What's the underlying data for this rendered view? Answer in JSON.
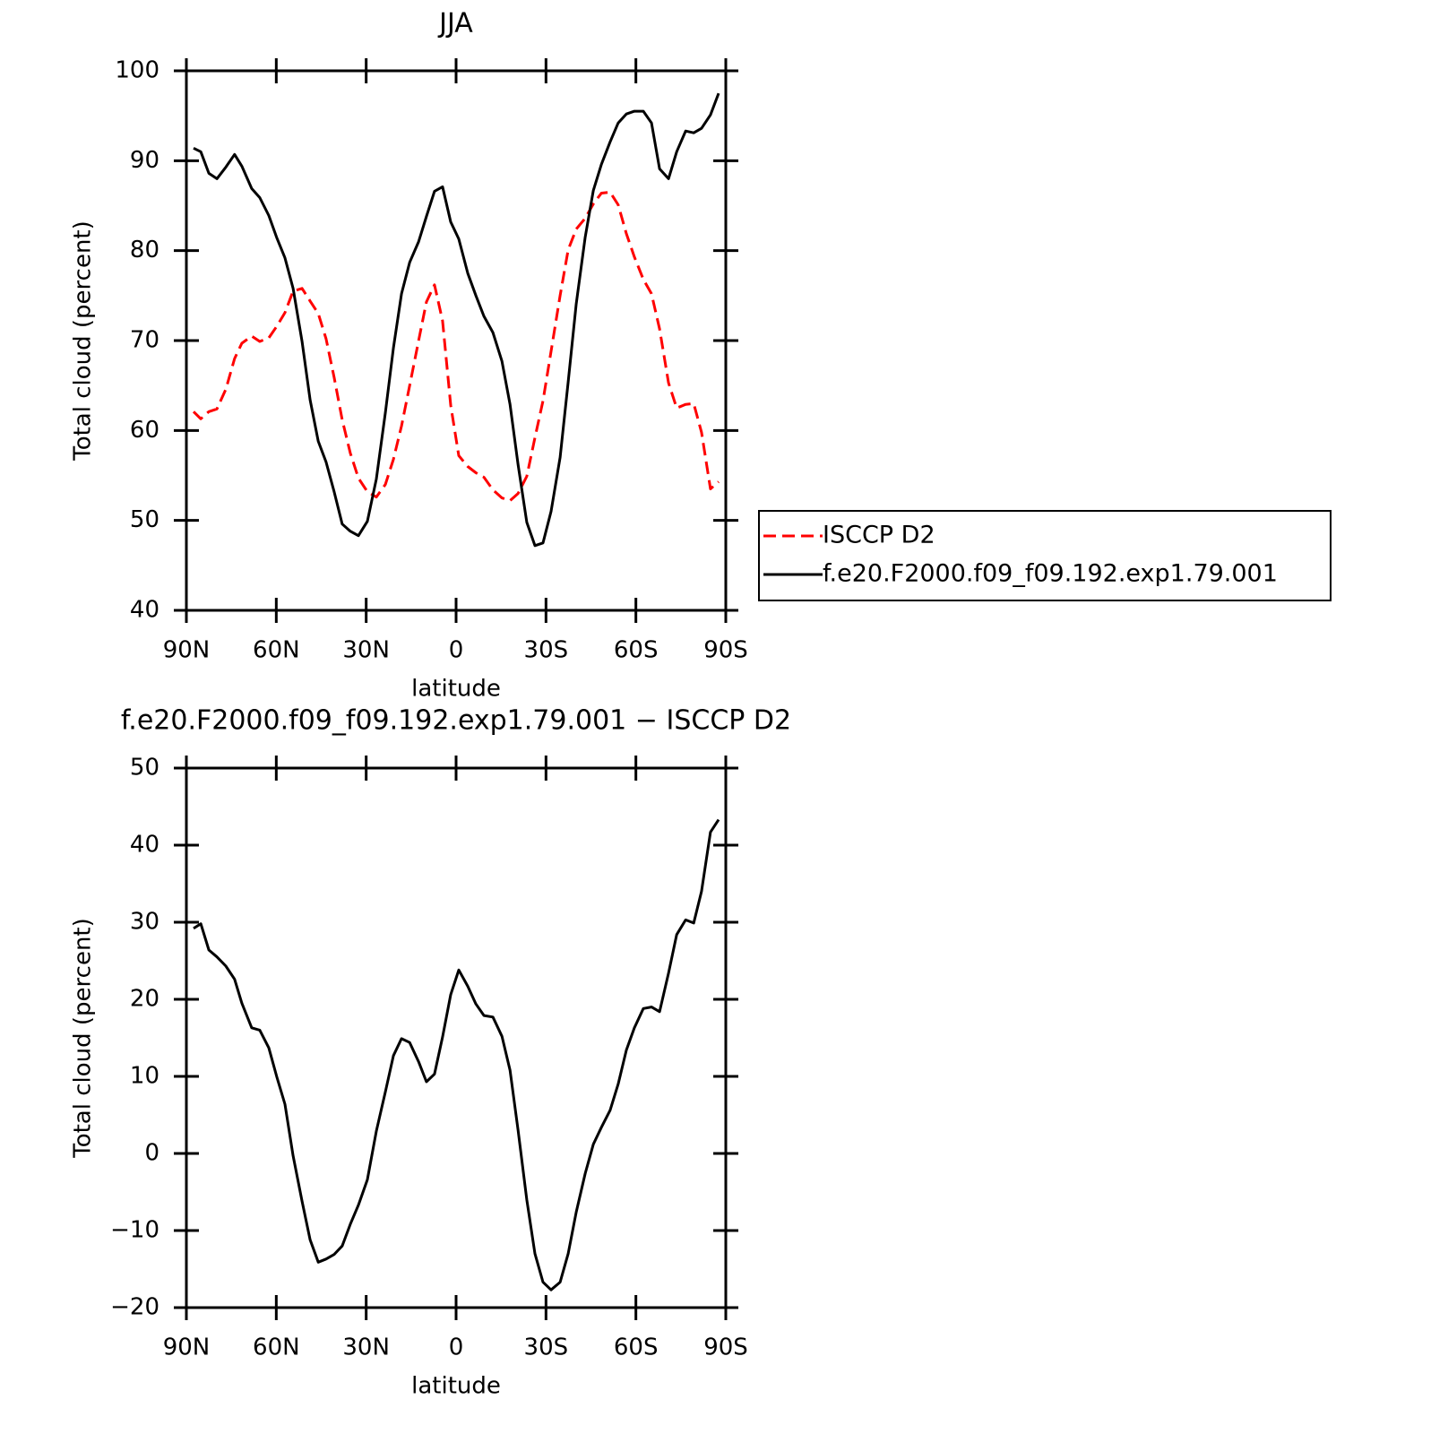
{
  "chart_data": [
    {
      "type": "line",
      "title": "JJA",
      "xlabel": "latitude",
      "ylabel": "Total cloud (percent)",
      "x": [
        87.6,
        85.2,
        82.5,
        79.8,
        76.8,
        73.9,
        71.5,
        68.2,
        65.5,
        62.5,
        59.8,
        57.1,
        54.4,
        51.4,
        48.7,
        46.0,
        43.4,
        40.7,
        38.0,
        35.3,
        32.6,
        29.6,
        26.6,
        23.6,
        20.9,
        18.2,
        15.5,
        12.5,
        9.9,
        7.2,
        4.5,
        1.8,
        -0.9,
        -3.9,
        -6.6,
        -9.3,
        -12.3,
        -15.3,
        -18.0,
        -20.7,
        -23.6,
        -26.3,
        -29.0,
        -31.7,
        -34.7,
        -37.4,
        -40.1,
        -43.1,
        -45.8,
        -48.5,
        -51.4,
        -54.1,
        -56.8,
        -59.5,
        -62.5,
        -65.2,
        -67.9,
        -70.9,
        -73.6,
        -76.6,
        -79.3,
        -81.9,
        -84.9,
        -87.6
      ],
      "series": [
        {
          "name": "ISCCP D2",
          "color": "#ff0000",
          "dash": true,
          "values": [
            62.1,
            61.3,
            62.1,
            62.4,
            64.6,
            68.0,
            69.7,
            70.5,
            69.9,
            70.3,
            71.6,
            73.1,
            75.5,
            75.8,
            74.4,
            73.0,
            70.2,
            65.9,
            61.2,
            57.5,
            54.7,
            53.2,
            52.6,
            54.0,
            56.8,
            60.5,
            65.0,
            70.0,
            74.3,
            76.2,
            72.2,
            62.8,
            57.2,
            56.0,
            55.3,
            54.8,
            53.4,
            52.5,
            52.2,
            53.0,
            54.9,
            59.2,
            63.3,
            68.8,
            75.0,
            80.1,
            82.4,
            83.6,
            85.2,
            86.4,
            86.5,
            85.1,
            81.9,
            79.3,
            76.8,
            75.2,
            71.3,
            65.3,
            62.5,
            62.9,
            63.0,
            59.8,
            53.5,
            54.3
          ]
        },
        {
          "name": "f.e20.F2000.f09_f09.192.exp1.79.001",
          "color": "#000000",
          "dash": false,
          "values": [
            91.4,
            91.0,
            88.6,
            88.0,
            89.3,
            90.7,
            89.4,
            86.9,
            85.9,
            83.9,
            81.4,
            79.2,
            75.8,
            69.9,
            63.4,
            58.8,
            56.5,
            53.2,
            49.6,
            48.8,
            48.3,
            49.9,
            54.6,
            62.0,
            69.2,
            75.2,
            78.7,
            81.0,
            83.8,
            86.6,
            87.1,
            83.2,
            81.3,
            77.5,
            75.0,
            72.7,
            70.9,
            67.7,
            62.9,
            56.2,
            49.8,
            47.2,
            47.5,
            51.0,
            57.0,
            65.4,
            74.1,
            81.5,
            86.7,
            89.6,
            92.1,
            94.2,
            95.2,
            95.5,
            95.5,
            94.2,
            89.1,
            88.0,
            91.0,
            93.3,
            93.1,
            93.6,
            95.1,
            97.5
          ]
        }
      ],
      "xlim": [
        90,
        -90
      ],
      "xticks": [
        {
          "value": 90,
          "label": "90N"
        },
        {
          "value": 60,
          "label": "60N"
        },
        {
          "value": 30,
          "label": "30N"
        },
        0,
        {
          "value": -30,
          "label": "30S"
        },
        {
          "value": -60,
          "label": "60S"
        },
        {
          "value": -90,
          "label": "90S"
        }
      ],
      "ylim": [
        40,
        100
      ],
      "yticks": [
        40,
        50,
        60,
        70,
        80,
        90,
        100
      ],
      "legend": "right"
    },
    {
      "type": "line",
      "title": "f.e20.F2000.f09_f09.192.exp1.79.001 − ISCCP D2",
      "xlabel": "latitude",
      "ylabel": "Total cloud (percent)",
      "x": [
        87.6,
        85.2,
        82.5,
        79.8,
        76.8,
        73.9,
        71.5,
        68.2,
        65.5,
        62.5,
        59.8,
        57.1,
        54.4,
        51.4,
        48.7,
        46.0,
        43.4,
        40.7,
        38.0,
        35.3,
        32.6,
        29.6,
        26.6,
        23.6,
        20.9,
        18.2,
        15.5,
        12.5,
        9.9,
        7.2,
        4.5,
        1.8,
        -0.9,
        -3.9,
        -6.6,
        -9.3,
        -12.3,
        -15.3,
        -18.0,
        -20.7,
        -23.6,
        -26.3,
        -29.0,
        -31.7,
        -34.7,
        -37.4,
        -40.1,
        -43.1,
        -45.8,
        -48.5,
        -51.4,
        -54.1,
        -56.8,
        -59.5,
        -62.5,
        -65.2,
        -67.9,
        -70.9,
        -73.6,
        -76.6,
        -79.3,
        -81.9,
        -84.9,
        -87.6
      ],
      "series": [
        {
          "color": "#000000",
          "dash": false,
          "values": [
            29.2,
            29.8,
            26.4,
            25.5,
            24.3,
            22.6,
            19.5,
            16.3,
            16.0,
            13.7,
            9.9,
            6.4,
            -0.3,
            -6.2,
            -11.2,
            -14.1,
            -13.7,
            -13.1,
            -12.0,
            -9.2,
            -6.7,
            -3.4,
            2.9,
            8.0,
            12.7,
            14.9,
            14.4,
            11.9,
            9.3,
            10.3,
            15.1,
            20.6,
            23.8,
            21.7,
            19.4,
            17.9,
            17.7,
            15.2,
            10.8,
            3.0,
            -6.0,
            -13.0,
            -16.7,
            -17.7,
            -16.7,
            -13.0,
            -7.6,
            -2.6,
            1.2,
            3.4,
            5.6,
            9.0,
            13.4,
            16.3,
            18.8,
            19.0,
            18.4,
            23.4,
            28.4,
            30.3,
            29.9,
            34.0,
            41.7,
            43.3
          ]
        }
      ],
      "xlim": [
        90,
        -90
      ],
      "xticks": [
        {
          "value": 90,
          "label": "90N"
        },
        {
          "value": 60,
          "label": "60N"
        },
        {
          "value": 30,
          "label": "30N"
        },
        0,
        {
          "value": -30,
          "label": "30S"
        },
        {
          "value": -60,
          "label": "60S"
        },
        {
          "value": -90,
          "label": "90S"
        }
      ],
      "ylim": [
        -20,
        50
      ],
      "yticks": [
        {
          "value": -20,
          "label": "−20"
        },
        {
          "value": -10,
          "label": "−10"
        },
        0,
        10,
        20,
        30,
        40,
        50
      ]
    }
  ]
}
